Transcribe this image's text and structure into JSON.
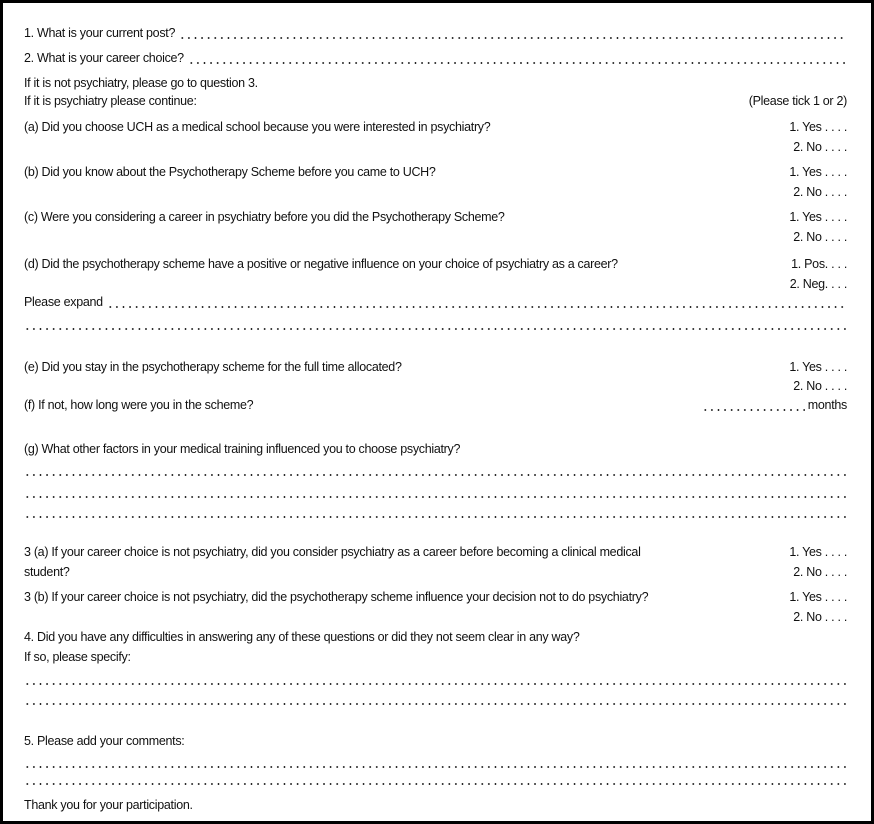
{
  "q1": "1.  What is your current post?",
  "q2": "2.  What is your career choice?",
  "note1": "If it is not psychiatry, please go to question 3.",
  "note2": "If it is psychiatry please continue:",
  "tick": "(Please tick 1 or 2)",
  "qa": "(a) Did you choose UCH as a medical school because you were interested in psychiatry?",
  "qb": "(b) Did you know about the Psychotherapy Scheme before you came to UCH?",
  "qc": "(c) Were you considering a career in psychiatry before you did the Psychotherapy Scheme?",
  "qd": "(d) Did the psychotherapy scheme have a positive or negative influence on your choice of psychiatry as a career?",
  "expand": "Please expand",
  "qe": "(e) Did you stay in the psychotherapy scheme for the full time allocated?",
  "qf": "(f) If not, how long were you in the scheme?",
  "months": "months",
  "qg": "(g) What other factors in your medical training influenced you to choose psychiatry?",
  "q3a_1": "3 (a) If your career choice is not psychiatry, did you consider psychiatry as a career before becoming a clinical medical",
  "q3a_2": "student?",
  "q3b": "3 (b) If your career choice is not psychiatry, did the psychotherapy scheme influence your decision not to do psychiatry?",
  "q4": "4. Did you have any difficulties in answering any of these questions or did they not seem clear in any way?",
  "q4b": "If so, please specify:",
  "q5": "5. Please add your comments:",
  "thanks": "Thank you for your participation.",
  "yes": "1. Yes . . . .",
  "no": "2. No . . . .",
  "pos": "1. Pos. . . .",
  "neg": "2. Neg. . . ."
}
